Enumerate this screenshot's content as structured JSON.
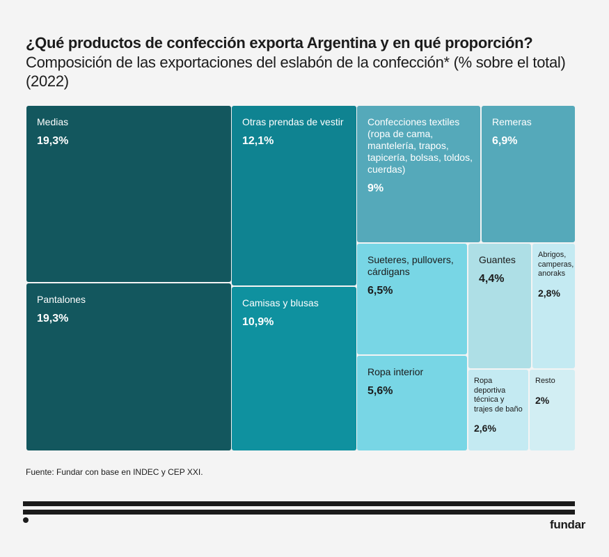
{
  "header": {
    "title": "¿Qué productos de confección exporta Argentina y en qué proporción?",
    "subtitle": "Composición de las exportaciones del eslabón de la confección* (% sobre el total) (2022)"
  },
  "chart_data": {
    "type": "treemap",
    "title": "¿Qué productos de confección exporta Argentina y en qué proporción?",
    "subtitle": "Composición de las exportaciones del eslabón de la confección* (% sobre el total) (2022)",
    "unit": "% sobre el total",
    "items": [
      {
        "name": "Medias",
        "value": 19.3,
        "label": "19,3%",
        "color": "#13575e",
        "text_color": "#ffffff"
      },
      {
        "name": "Pantalones",
        "value": 19.3,
        "label": "19,3%",
        "color": "#13575e",
        "text_color": "#ffffff"
      },
      {
        "name": "Otras prendas de vestir",
        "value": 12.1,
        "label": "12,1%",
        "color": "#0f8391",
        "text_color": "#ffffff"
      },
      {
        "name": "Camisas y blusas",
        "value": 10.9,
        "label": "10,9%",
        "color": "#0f919f",
        "text_color": "#ffffff"
      },
      {
        "name": "Confecciones textiles (ropa de cama, mantelería, trapos, tapicería, bolsas, toldos, cuerdas)",
        "value": 9.0,
        "label": "9%",
        "color": "#55a9ba",
        "text_color": "#ffffff"
      },
      {
        "name": "Remeras",
        "value": 6.9,
        "label": "6,9%",
        "color": "#55a9ba",
        "text_color": "#ffffff"
      },
      {
        "name": "Sueteres, pullovers, cárdigans",
        "value": 6.5,
        "label": "6,5%",
        "color": "#78d6e5",
        "text_color": "#1b1b1b"
      },
      {
        "name": "Ropa interior",
        "value": 5.6,
        "label": "5,6%",
        "color": "#78d6e5",
        "text_color": "#1b1b1b"
      },
      {
        "name": "Guantes",
        "value": 4.4,
        "label": "4,4%",
        "color": "#aedfe6",
        "text_color": "#1b1b1b"
      },
      {
        "name": "Abrigos, camperas, anoraks",
        "value": 2.8,
        "label": "2,8%",
        "color": "#c4eaf2",
        "text_color": "#1b1b1b"
      },
      {
        "name": "Ropa deportiva técnica y trajes de baño",
        "value": 2.6,
        "label": "2,6%",
        "color": "#c4eaf2",
        "text_color": "#1b1b1b"
      },
      {
        "name": "Resto",
        "value": 2.0,
        "label": "2%",
        "color": "#d2eef3",
        "text_color": "#1b1b1b"
      }
    ]
  },
  "footer": {
    "source": "Fuente: Fundar con base en INDEC y CEP XXI.",
    "logo": "fundar"
  }
}
